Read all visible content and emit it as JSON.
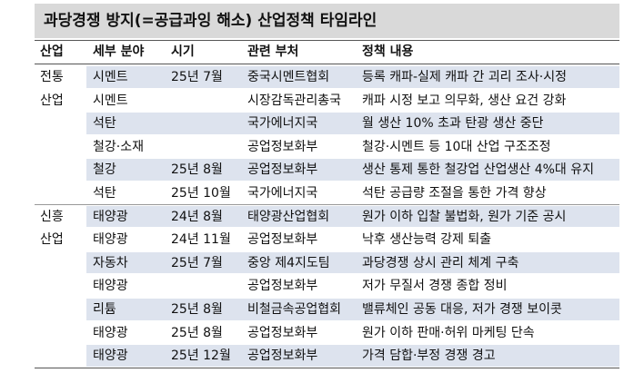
{
  "header": {
    "title": "과당경쟁 방지(=공급과잉 해소) 산업정책 타임라인"
  },
  "table": {
    "columns": [
      "산업",
      "세부 분야",
      "시기",
      "관련 부처",
      "정책 내용"
    ],
    "groups": [
      {
        "industry": [
          "전통",
          "산업"
        ],
        "rows": [
          [
            "시멘트",
            "25년 7월",
            "중국시멘트협회",
            "등록 캐파-실제 캐파 간 괴리 조사·시정"
          ],
          [
            "시멘트",
            null,
            "시장감독관리총국",
            "캐파 시정 보고 의무화, 생산 요건 강화"
          ],
          [
            "석탄",
            null,
            "국가에너지국",
            "월 생산 10% 초과 탄광 생산 중단"
          ],
          [
            "철강·소재",
            null,
            "공업정보화부",
            "철강·시멘트 등 10대 산업 구조조정"
          ],
          [
            "철강",
            "25년 8월",
            "공업정보화부",
            "생산 통제 통한 철강업 산업생산 4%대 유지"
          ],
          [
            "석탄",
            "25년 10월",
            "국가에너지국",
            "석탄 공급량 조절을 통한 가격 향상"
          ]
        ]
      },
      {
        "industry": [
          "신흥",
          "산업"
        ],
        "rows": [
          [
            "태양광",
            "24년 8월",
            "태양광산업협회",
            "원가 이하 입찰 불법화, 원가 기준 공시"
          ],
          [
            "태양광",
            "24년 11월",
            "공업정보화부",
            "낙후 생산능력 강제 퇴출"
          ],
          [
            "자동차",
            "25년 7월",
            "중앙 제4지도팀",
            "과당경쟁 상시 관리 체계 구축"
          ],
          [
            "태양광",
            null,
            "공업정보화부",
            "저가 무질서 경쟁 종합 정비"
          ],
          [
            "리튬",
            "25년 8월",
            "비철금속공업협회",
            "밸류체인 공동 대응, 저가 경쟁 보이콧"
          ],
          [
            "태양광",
            "25년 8월",
            "공업정보화부",
            "원가 이하 판매·허위 마케팅 단속"
          ],
          [
            "태양광",
            "25년 12월",
            "공업정보화부",
            "가격 담합·부정 경쟁 경고"
          ]
        ]
      }
    ]
  }
}
